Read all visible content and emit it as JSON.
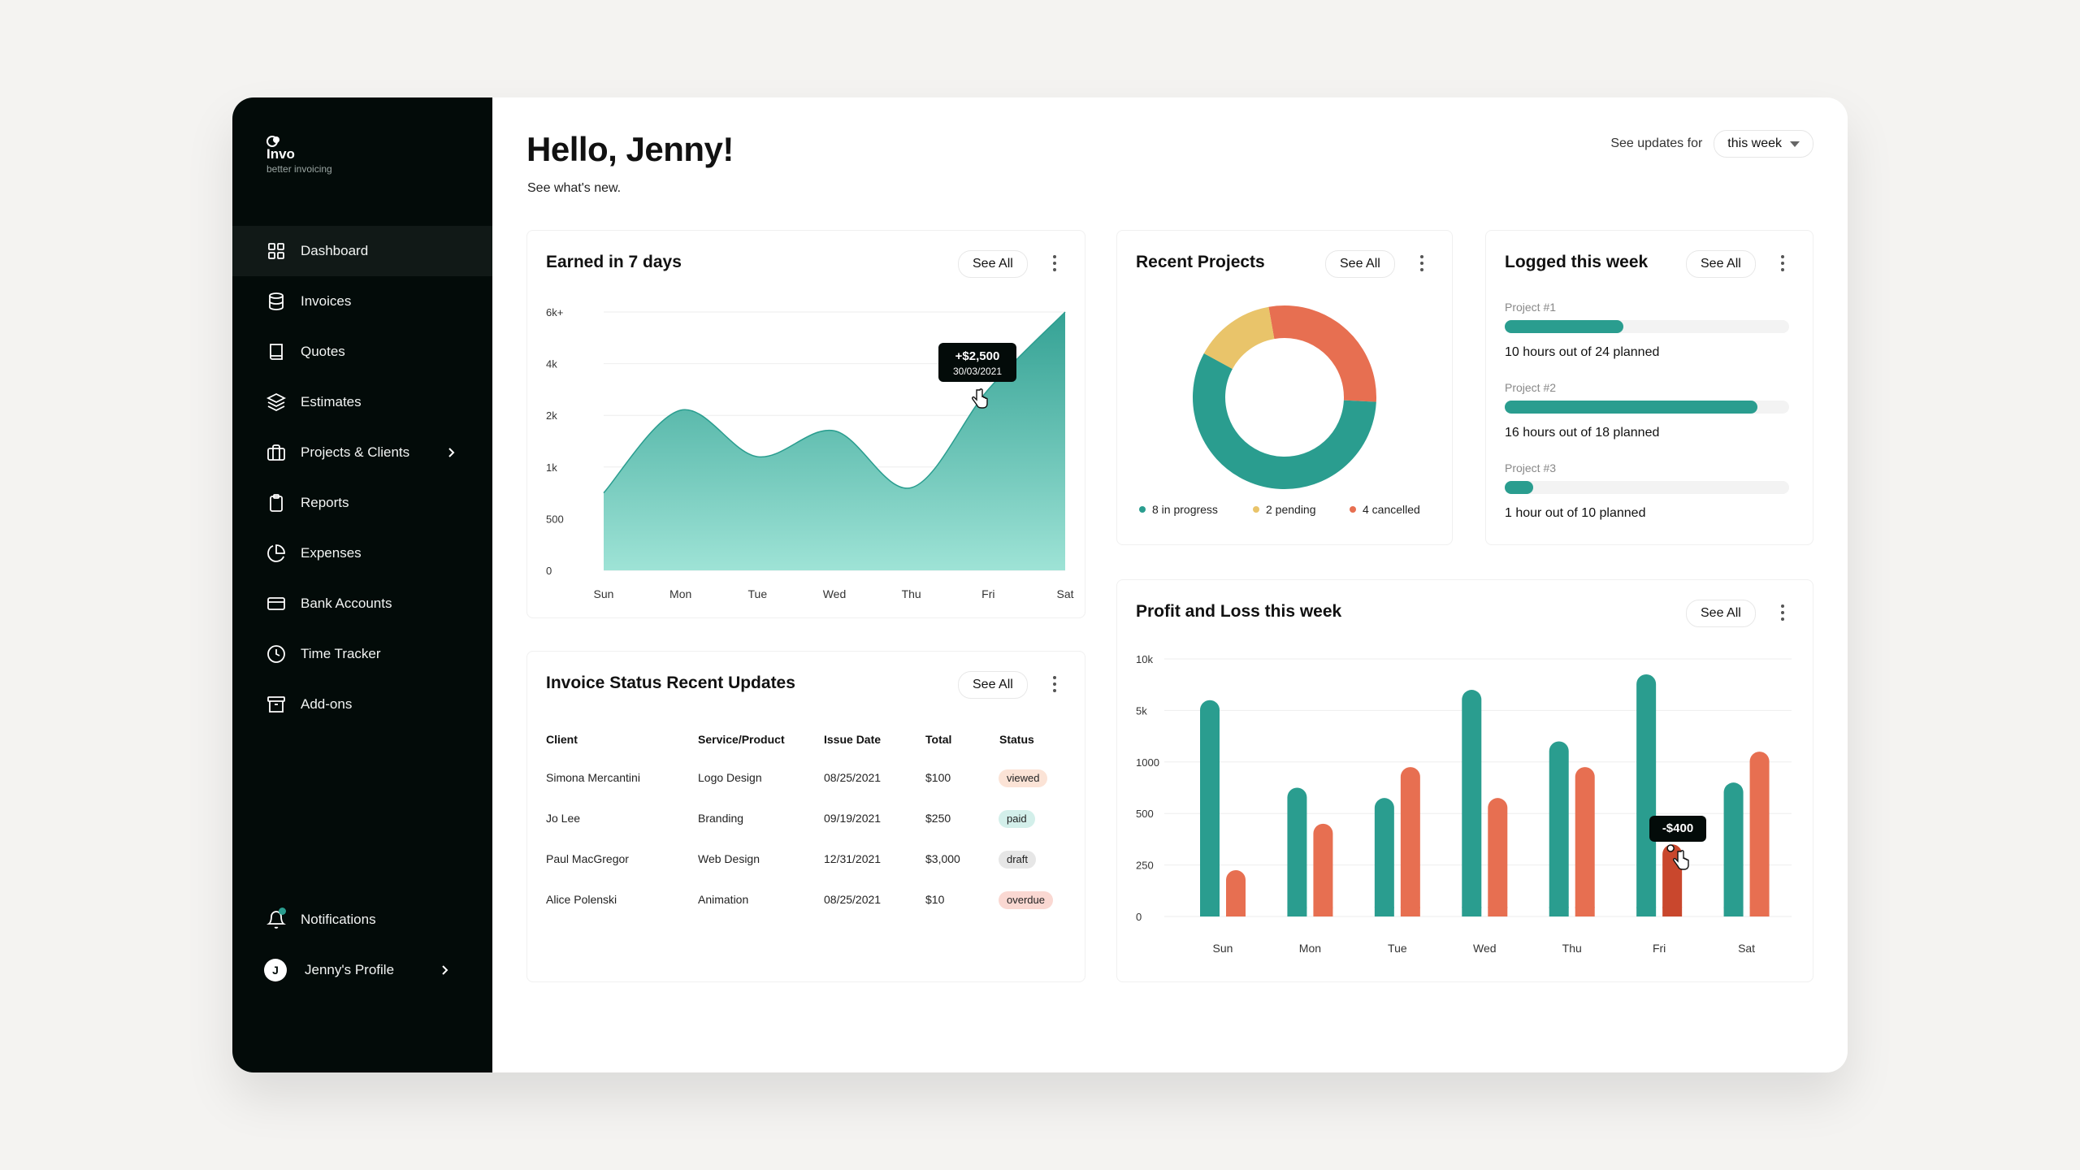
{
  "brand": {
    "name": "Invo",
    "tagline": "better invoicing"
  },
  "sidebar": {
    "items": [
      {
        "label": "Dashboard",
        "icon": "grid-icon",
        "active": true
      },
      {
        "label": "Invoices",
        "icon": "database-icon"
      },
      {
        "label": "Quotes",
        "icon": "book-icon"
      },
      {
        "label": "Estimates",
        "icon": "layers-icon"
      },
      {
        "label": "Projects & Clients",
        "icon": "briefcase-icon",
        "has_submenu": true
      },
      {
        "label": "Reports",
        "icon": "clipboard-icon"
      },
      {
        "label": "Expenses",
        "icon": "pie-chart-icon"
      },
      {
        "label": "Bank Accounts",
        "icon": "credit-card-icon"
      },
      {
        "label": "Time Tracker",
        "icon": "clock-icon"
      },
      {
        "label": "Add-ons",
        "icon": "archive-icon"
      }
    ],
    "notifications": {
      "label": "Notifications"
    },
    "profile": {
      "label": "Jenny's Profile",
      "initial": "J"
    }
  },
  "header": {
    "greeting": "Hello, Jenny!",
    "subtitle": "See what's new.",
    "updates_label": "See updates for",
    "period": "this week"
  },
  "earned": {
    "title": "Earned in 7 days",
    "see_all": "See All",
    "tooltip": {
      "value": "+$2,500",
      "date": "30/03/2021"
    }
  },
  "projects": {
    "title": "Recent Projects",
    "see_all": "See All",
    "legend": [
      {
        "label": "8 in progress",
        "color": "#2a9d8f"
      },
      {
        "label": "2 pending",
        "color": "#e9c46a"
      },
      {
        "label": "4 cancelled",
        "color": "#e76f51"
      }
    ]
  },
  "logged": {
    "title": "Logged this week",
    "see_all": "See All",
    "items": [
      {
        "label": "Project #1",
        "text": "10 hours out of 24 planned",
        "logged": 10,
        "planned": 24
      },
      {
        "label": "Project #2",
        "text": "16 hours out of 18 planned",
        "logged": 16,
        "planned": 18
      },
      {
        "label": "Project #3",
        "text": "1 hour out of 10 planned",
        "logged": 1,
        "planned": 10
      }
    ]
  },
  "invoices": {
    "title": "Invoice Status Recent Updates",
    "see_all": "See All",
    "columns": [
      "Client",
      "Service/Product",
      "Issue Date",
      "Total",
      "Status"
    ],
    "rows": [
      {
        "client": "Simona Mercantini",
        "service": "Logo Design",
        "date": "08/25/2021",
        "total": "$100",
        "status": "viewed",
        "status_color": "#fbe3d6"
      },
      {
        "client": "Jo Lee",
        "service": "Branding",
        "date": "09/19/2021",
        "total": "$250",
        "status": "paid",
        "status_color": "#d3efea"
      },
      {
        "client": "Paul MacGregor",
        "service": "Web Design",
        "date": "12/31/2021",
        "total": "$3,000",
        "status": "draft",
        "status_color": "#e6e6e6"
      },
      {
        "client": "Alice Polenski",
        "service": "Animation",
        "date": "08/25/2021",
        "total": "$10",
        "status": "overdue",
        "status_color": "#fad8d2"
      }
    ]
  },
  "profit": {
    "title": "Profit and Loss this week",
    "see_all": "See All",
    "tooltip": {
      "value": "-$400"
    }
  },
  "colors": {
    "teal": "#2a9d8f",
    "orange": "#e76f51",
    "yellow": "#e9c46a",
    "dark": "#030b09"
  },
  "chart_data": [
    {
      "type": "area",
      "title": "Earned in 7 days",
      "categories": [
        "Sun",
        "Mon",
        "Tue",
        "Wed",
        "Thu",
        "Fri",
        "Sat"
      ],
      "y_ticks": [
        "0",
        "500",
        "1k",
        "2k",
        "4k",
        "6k+"
      ],
      "values_tick_index": [
        1.5,
        3.1,
        2.2,
        2.7,
        1.6,
        3.5,
        5.0
      ],
      "note": "values expressed in tick-index units of the nonlinear y-axis (0=0, 1=500, 2=1k, 3=2k, 4=4k, 5=6k+)",
      "annotation": {
        "label": "+$2,500",
        "date": "30/03/2021",
        "x": "Fri"
      }
    },
    {
      "type": "pie",
      "title": "Recent Projects",
      "labels": [
        "in progress",
        "pending",
        "cancelled"
      ],
      "values": [
        8,
        2,
        4
      ],
      "colors": [
        "#2a9d8f",
        "#e9c46a",
        "#e76f51"
      ]
    },
    {
      "type": "bar",
      "title": "Profit and Loss this week",
      "categories": [
        "Sun",
        "Mon",
        "Tue",
        "Wed",
        "Thu",
        "Fri",
        "Sat"
      ],
      "y_ticks": [
        "0",
        "250",
        "500",
        "1000",
        "5k",
        "10k"
      ],
      "series": [
        {
          "values": [
            4.2,
            2.5,
            2.3,
            4.4,
            3.4,
            4.7,
            2.6
          ],
          "color": "#2a9d8f"
        },
        {
          "values": [
            0.9,
            1.8,
            2.9,
            2.3,
            2.9,
            1.4,
            3.2
          ],
          "color": "#e76f51"
        }
      ],
      "note": "values expressed in tick-index units of the nonlinear y-axis (0=0, 1=250, 2=500, 3=1000, 4=5k, 5=10k)",
      "annotation": {
        "label": "-$400",
        "x": "Fri"
      }
    }
  ]
}
